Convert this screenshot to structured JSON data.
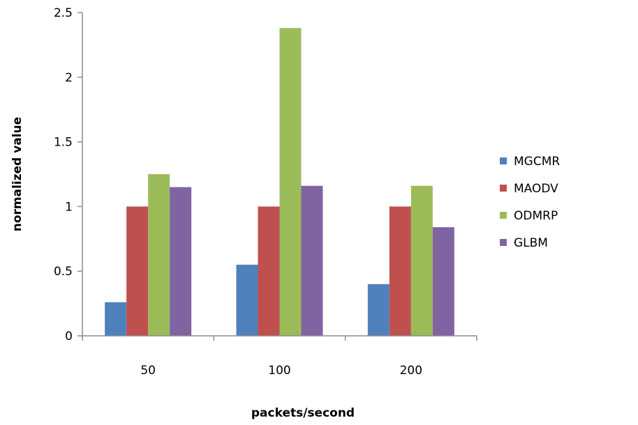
{
  "chart_data": {
    "type": "bar",
    "xlabel": "packets/second",
    "ylabel": "normalized value",
    "categories": [
      "50",
      "100",
      "200"
    ],
    "ylim": [
      0,
      2.5
    ],
    "yticks": [
      "0",
      "0.5",
      "1",
      "1.5",
      "2",
      "2.5"
    ],
    "grid": false,
    "legend_position": "right",
    "series": [
      {
        "name": "MGCMR",
        "color": "#4f81bd",
        "values": [
          0.26,
          0.55,
          0.4
        ]
      },
      {
        "name": "MAODV",
        "color": "#c0504d",
        "values": [
          1.0,
          1.0,
          1.0
        ]
      },
      {
        "name": "ODMRP",
        "color": "#9bbb59",
        "values": [
          1.25,
          2.38,
          1.16
        ]
      },
      {
        "name": "GLBM",
        "color": "#8064a2",
        "values": [
          1.15,
          1.16,
          0.84
        ]
      }
    ]
  }
}
